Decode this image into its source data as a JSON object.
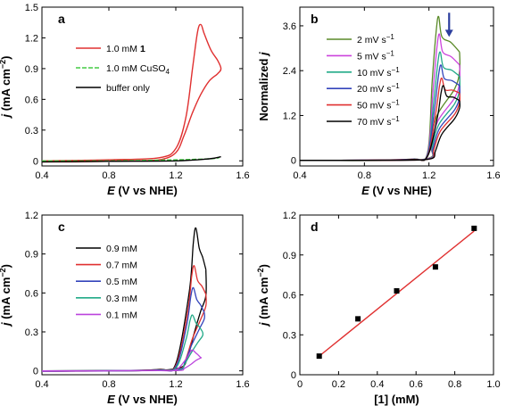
{
  "colors": {
    "p1": "#e03030",
    "cuso4": "#44cc44",
    "buffer": "#000000",
    "b2": "#5a8a28",
    "b5": "#cc44dd",
    "b10": "#22aa88",
    "b20": "#3344bb",
    "b50": "#e03030",
    "b70": "#000000",
    "c09": "#000000",
    "c07": "#e03030",
    "c05": "#3344bb",
    "c03": "#22aa88",
    "c01": "#bb44dd",
    "fit": "#e03030",
    "arrow": "#2c3e9e"
  },
  "chart_data": [
    {
      "panel": "a",
      "type": "line",
      "xlabel_sym": "E",
      "xlabel_rest": " (V vs NHE)",
      "ylabel_sym": "j",
      "ylabel_rest": " (mA cm",
      "ylabel_sup": "−2",
      "ylabel_end": ")",
      "xlim": [
        0.4,
        1.6
      ],
      "ylim": [
        -0.05,
        1.5
      ],
      "xticks": [
        "0.4",
        "0.8",
        "1.2",
        "1.6"
      ],
      "yticks": [
        "0",
        "0.3",
        "0.6",
        "0.9",
        "1.2",
        "1.5"
      ],
      "legend": [
        "1.0 mM 1",
        "1.0 mM CuSO4",
        "buffer only"
      ],
      "legend_bold_suffix": "1",
      "legend_cuso4_main": "1.0 mM CuSO",
      "legend_cuso4_sub": "4",
      "series": [
        {
          "name": "1.0 mM 1",
          "style": "solid",
          "x": [
            0.4,
            0.8,
            1.1,
            1.2,
            1.26,
            1.3,
            1.33,
            1.35,
            1.37,
            1.41,
            1.45,
            1.47,
            1.45,
            1.4,
            1.35,
            1.3,
            1.25,
            1.2,
            1.1,
            0.9,
            0.6,
            0.4
          ],
          "y": [
            0.0,
            0.01,
            0.03,
            0.12,
            0.42,
            0.9,
            1.26,
            1.33,
            1.24,
            1.08,
            0.98,
            0.9,
            0.85,
            0.78,
            0.65,
            0.47,
            0.25,
            0.08,
            0.01,
            0.0,
            -0.01,
            -0.01
          ]
        },
        {
          "name": "1.0 mM CuSO4",
          "style": "dashed",
          "x": [
            0.4,
            0.8,
            1.2,
            1.4,
            1.46
          ],
          "y": [
            0.0,
            0.0,
            0.01,
            0.02,
            0.03
          ]
        },
        {
          "name": "buffer only",
          "style": "solid",
          "x": [
            0.4,
            0.8,
            1.2,
            1.4,
            1.47
          ],
          "y": [
            -0.01,
            -0.005,
            0.0,
            0.02,
            0.04
          ]
        }
      ]
    },
    {
      "panel": "b",
      "type": "line",
      "xlabel_sym": "E",
      "xlabel_rest": " (V vs NHE)",
      "ylabel_word": "Normalized ",
      "ylabel_sym": "j",
      "xlim": [
        0.4,
        1.6
      ],
      "ylim": [
        -0.15,
        4.1
      ],
      "xticks": [
        "0.4",
        "0.8",
        "1.2",
        "1.6"
      ],
      "yticks": [
        "0",
        "1.2",
        "2.4",
        "3.6"
      ],
      "legend_unit": "s",
      "legend_unit_sup": "−1",
      "series": [
        {
          "name": "2 mV s−1",
          "label": "2 mV ",
          "peak": [
            1.26,
            3.85
          ],
          "end": [
            1.39,
            2.9
          ],
          "ret": [
            1.39,
            2.4
          ]
        },
        {
          "name": "5 mV s−1",
          "label": "5 mV ",
          "peak": [
            1.265,
            3.38
          ],
          "end": [
            1.39,
            2.55
          ],
          "ret": [
            1.39,
            2.1
          ]
        },
        {
          "name": "10 mV s−1",
          "label": "10 mV ",
          "peak": [
            1.27,
            2.9
          ],
          "end": [
            1.39,
            2.25
          ],
          "ret": [
            1.39,
            1.9
          ]
        },
        {
          "name": "20 mV s−1",
          "label": "20 mV ",
          "peak": [
            1.275,
            2.55
          ],
          "end": [
            1.39,
            2.0
          ],
          "ret": [
            1.39,
            1.7
          ]
        },
        {
          "name": "50 mV s−1",
          "label": "50 mV ",
          "peak": [
            1.28,
            2.2
          ],
          "end": [
            1.39,
            1.8
          ],
          "ret": [
            1.39,
            1.55
          ]
        },
        {
          "name": "70 mV s−1",
          "label": "70 mV ",
          "peak": [
            1.29,
            2.0
          ],
          "end": [
            1.39,
            1.6
          ],
          "ret": [
            1.39,
            1.4
          ]
        }
      ]
    },
    {
      "panel": "c",
      "type": "line",
      "xlabel_sym": "E",
      "xlabel_rest": " (V vs NHE)",
      "ylabel_sym": "j",
      "ylabel_rest": " (mA cm",
      "ylabel_sup": "−2",
      "ylabel_end": ")",
      "xlim": [
        0.4,
        1.6
      ],
      "ylim": [
        -0.03,
        1.2
      ],
      "xticks": [
        "0.4",
        "0.8",
        "1.2",
        "1.6"
      ],
      "yticks": [
        "0",
        "0.3",
        "0.6",
        "0.9",
        "1.2"
      ],
      "series": [
        {
          "name": "0.9 mM",
          "peak": [
            1.32,
            1.1
          ],
          "end": [
            1.38,
            0.78
          ],
          "ret": [
            1.38,
            0.58
          ]
        },
        {
          "name": "0.7 mM",
          "peak": [
            1.31,
            0.81
          ],
          "end": [
            1.38,
            0.59
          ],
          "ret": [
            1.38,
            0.5
          ]
        },
        {
          "name": "0.5 mM",
          "peak": [
            1.305,
            0.64
          ],
          "end": [
            1.37,
            0.45
          ],
          "ret": [
            1.37,
            0.4
          ]
        },
        {
          "name": "0.3 mM",
          "peak": [
            1.3,
            0.43
          ],
          "end": [
            1.36,
            0.3
          ],
          "ret": [
            1.36,
            0.27
          ]
        },
        {
          "name": "0.1 mM",
          "peak": [
            1.3,
            0.16
          ],
          "end": [
            1.35,
            0.1
          ],
          "ret": [
            1.35,
            0.1
          ]
        }
      ]
    },
    {
      "panel": "d",
      "type": "scatter",
      "xlabel": "[1] (mM)",
      "ylabel_sym": "j",
      "ylabel_rest": " (mA cm",
      "ylabel_sup": "−2",
      "ylabel_end": ")",
      "xlim": [
        0.0,
        1.0
      ],
      "ylim": [
        0.0,
        1.2
      ],
      "xticks": [
        "0",
        "0.2",
        "0.4",
        "0.6",
        "0.8",
        "1.0"
      ],
      "yticks": [
        "0",
        "0.3",
        "0.6",
        "0.9",
        "1.2"
      ],
      "points": {
        "x": [
          0.1,
          0.3,
          0.5,
          0.7,
          0.9
        ],
        "y": [
          0.14,
          0.42,
          0.63,
          0.81,
          1.1
        ]
      },
      "fit": {
        "x": [
          0.1,
          0.9
        ],
        "y": [
          0.14,
          1.08
        ]
      }
    }
  ]
}
